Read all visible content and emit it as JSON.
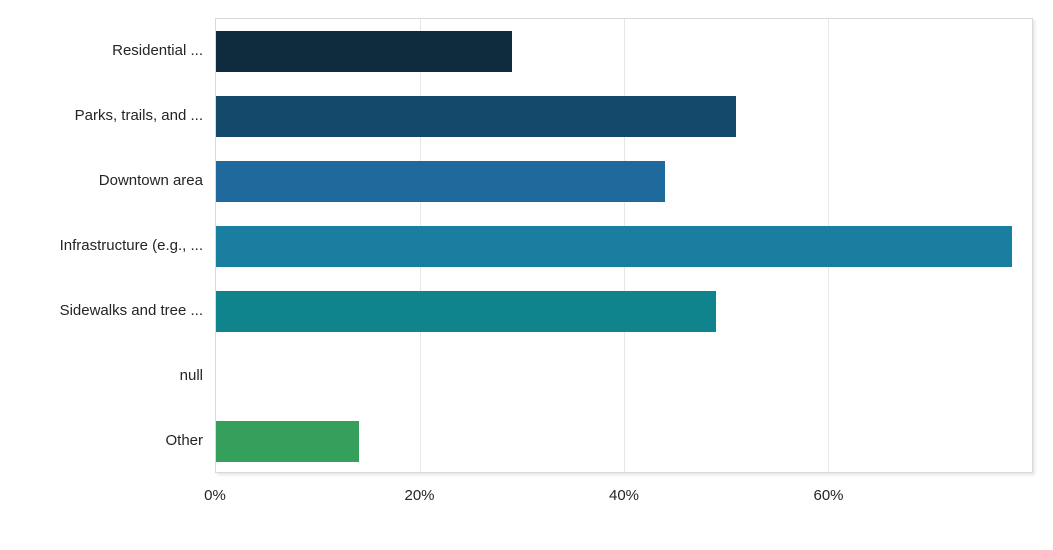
{
  "chart": {
    "background_color": "#ffffff",
    "plot_border_color": "#d9d9d9",
    "gridline_color": "#e6e6e6",
    "text_color": "#252423"
  },
  "chart_data": {
    "type": "bar",
    "orientation": "horizontal",
    "title": "",
    "xlabel": "",
    "ylabel": "",
    "categories": [
      "Residential ...",
      "Parks, trails, and ...",
      "Downtown area",
      "Infrastructure (e.g., ...",
      "Sidewalks and tree ...",
      "null",
      "Other"
    ],
    "values": [
      29,
      51,
      44,
      78,
      49,
      0,
      14
    ],
    "unit": "%",
    "bar_colors": [
      "#0f2c3f",
      "#15496b",
      "#20699d",
      "#1a7ea1",
      "#0f848c",
      null,
      "#35a05c"
    ],
    "xlim": [
      0,
      80
    ],
    "x_ticks": [
      {
        "label": "0%",
        "value": 0
      },
      {
        "label": "20%",
        "value": 20
      },
      {
        "label": "40%",
        "value": 40
      },
      {
        "label": "60%",
        "value": 60
      }
    ],
    "grid": "vertical",
    "legend": false
  }
}
